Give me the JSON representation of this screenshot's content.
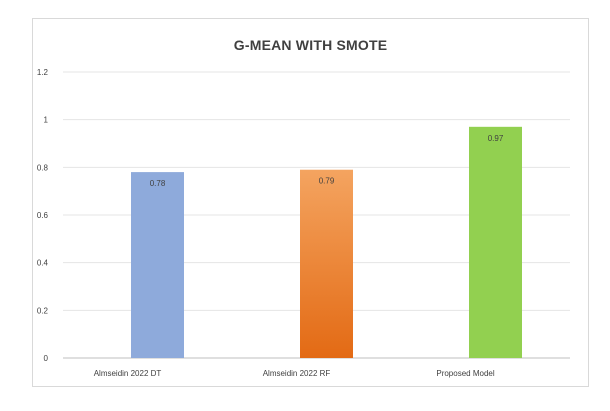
{
  "chart_data": {
    "type": "bar",
    "title": "G-MEAN WITH SMOTE",
    "xlabel": "",
    "ylabel": "",
    "categories": [
      "Almseidin 2022 DT",
      "Almseidin 2022 RF",
      "Proposed Model"
    ],
    "values": [
      0.78,
      0.79,
      0.97
    ],
    "data_labels": [
      "0.78",
      "0.79",
      "0.97"
    ],
    "ylim": [
      0,
      1.2
    ],
    "yticks": [
      0,
      0.2,
      0.4,
      0.6,
      0.8,
      1,
      1.2
    ],
    "ytick_labels": [
      "0",
      "0.2",
      "0.4",
      "0.6",
      "0.8",
      "1",
      "1.2"
    ],
    "grid": true,
    "legend": "none",
    "bar_colors": [
      {
        "top": "#8eaadb",
        "bottom": "#8eaadb"
      },
      {
        "top": "#f4a460",
        "bottom": "#e36a14"
      },
      {
        "top": "#92d050",
        "bottom": "#92d050"
      }
    ],
    "grid_color": "#e5e5e5",
    "axis_color": "#bfbfbf"
  }
}
